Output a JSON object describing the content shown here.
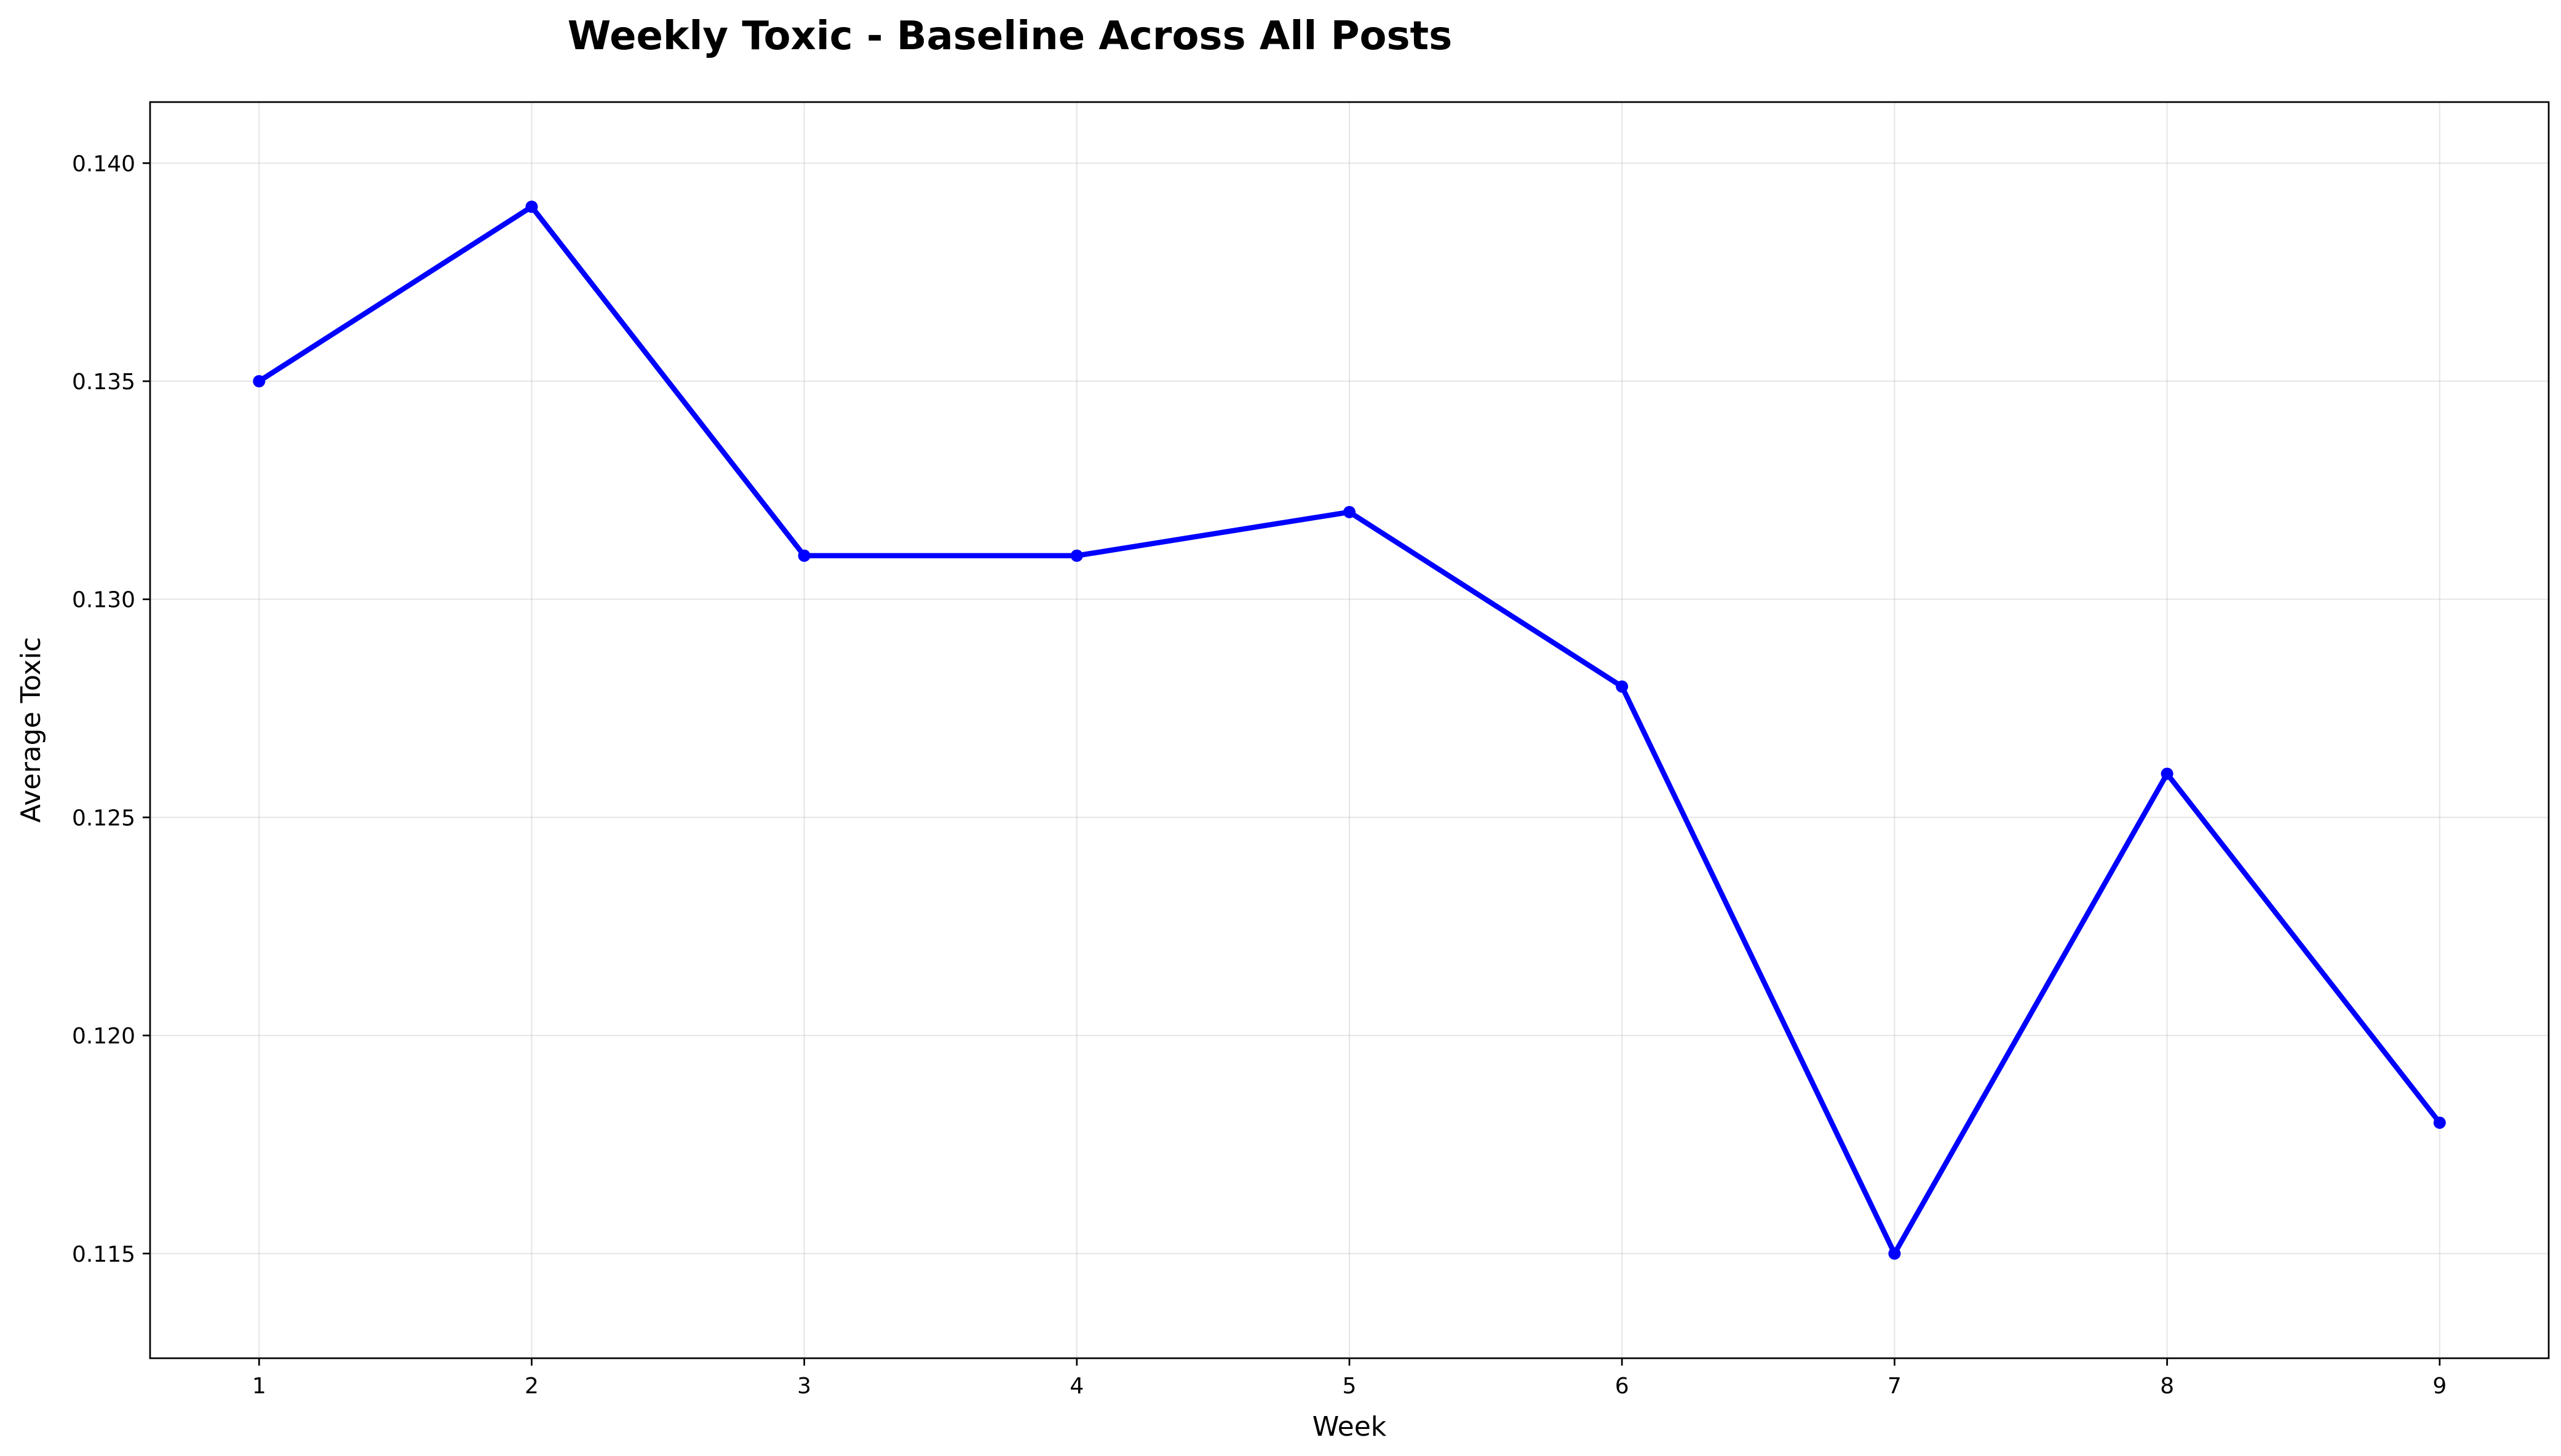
{
  "chart_data": {
    "type": "line",
    "title": "Weekly Toxic - Baseline Across All Posts",
    "xlabel": "Week",
    "ylabel": "Average Toxic",
    "x": [
      1,
      2,
      3,
      4,
      5,
      6,
      7,
      8,
      9
    ],
    "x_ticks": [
      "1",
      "2",
      "3",
      "4",
      "5",
      "6",
      "7",
      "8",
      "9"
    ],
    "xlim": [
      0.6,
      9.4
    ],
    "ylim": [
      0.1126,
      0.1414
    ],
    "y_ticks": [
      0.115,
      0.12,
      0.125,
      0.13,
      0.135,
      0.14
    ],
    "y_tick_labels": [
      "0.115",
      "0.120",
      "0.125",
      "0.130",
      "0.135",
      "0.140"
    ],
    "grid": true,
    "series": [
      {
        "values": [
          0.135,
          0.139,
          0.131,
          0.131,
          0.132,
          0.128,
          0.115,
          0.126,
          0.118
        ],
        "color": "#0000ff",
        "marker": "circle"
      }
    ]
  }
}
